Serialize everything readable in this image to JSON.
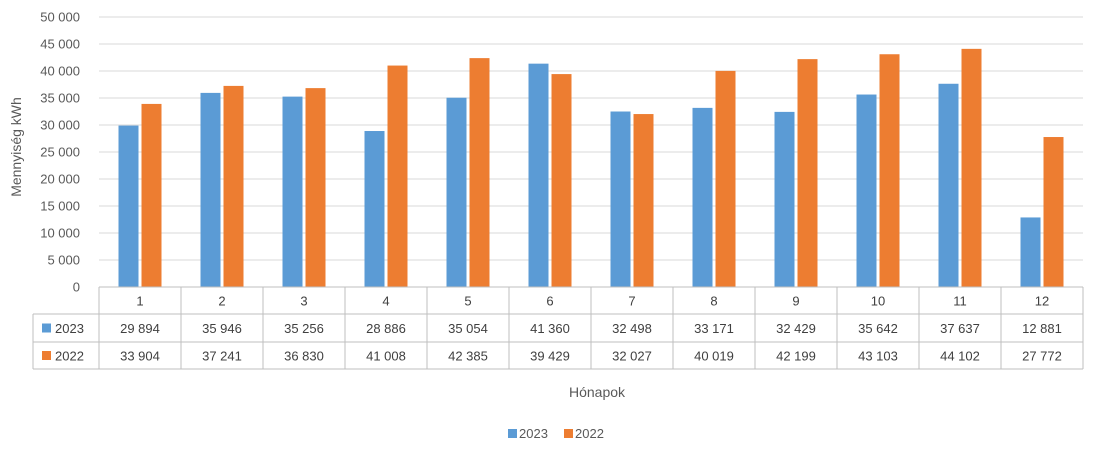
{
  "chart_data": {
    "type": "bar",
    "categories": [
      "1",
      "2",
      "3",
      "4",
      "5",
      "6",
      "7",
      "8",
      "9",
      "10",
      "11",
      "12"
    ],
    "series": [
      {
        "name": "2023",
        "color": "#5B9BD5",
        "values": [
          29894,
          35946,
          35256,
          28886,
          35054,
          41360,
          32498,
          33171,
          32429,
          35642,
          37637,
          12881
        ],
        "labels": [
          "29 894",
          "35 946",
          "35 256",
          "28 886",
          "35 054",
          "41 360",
          "32 498",
          "33 171",
          "32 429",
          "35 642",
          "37 637",
          "12 881"
        ]
      },
      {
        "name": "2022",
        "color": "#ED7D31",
        "values": [
          33904,
          37241,
          36830,
          41008,
          42385,
          39429,
          32027,
          40019,
          42199,
          43103,
          44102,
          27772
        ],
        "labels": [
          "33 904",
          "37 241",
          "36 830",
          "41 008",
          "42 385",
          "39 429",
          "32 027",
          "40 019",
          "42 199",
          "43 103",
          "44 102",
          "27 772"
        ]
      }
    ],
    "ylim": [
      0,
      50000
    ],
    "yticks": [
      {
        "value": 0,
        "label": "0"
      },
      {
        "value": 5000,
        "label": "5 000"
      },
      {
        "value": 10000,
        "label": "10 000"
      },
      {
        "value": 15000,
        "label": "15 000"
      },
      {
        "value": 20000,
        "label": "20 000"
      },
      {
        "value": 25000,
        "label": "25 000"
      },
      {
        "value": 30000,
        "label": "30 000"
      },
      {
        "value": 35000,
        "label": "35 000"
      },
      {
        "value": 40000,
        "label": "40 000"
      },
      {
        "value": 45000,
        "label": "45 000"
      },
      {
        "value": 50000,
        "label": "50 000"
      }
    ],
    "xlabel": "Hónapok",
    "ylabel": "Mennyiség kWh",
    "grid": true,
    "legend": "bottom-center",
    "data_table": true
  }
}
